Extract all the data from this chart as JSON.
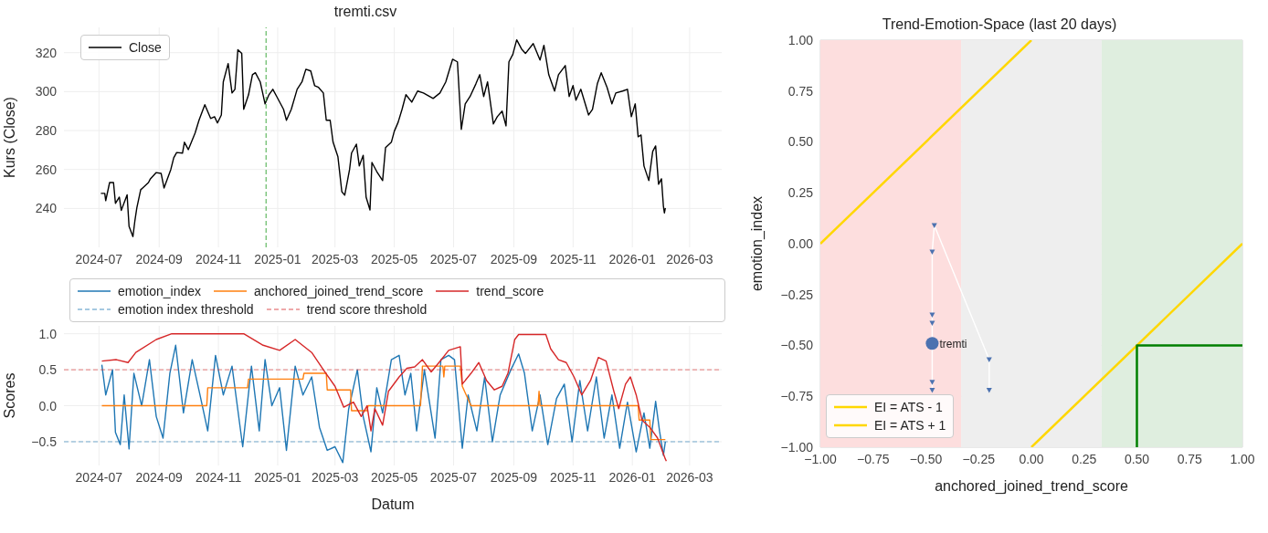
{
  "chart_data": [
    {
      "type": "line",
      "title": "tremti.csv",
      "ylabel": "Kurs (Close)",
      "xlim": [
        "2024-05-26",
        "2026-04-03"
      ],
      "ylim": [
        220,
        333
      ],
      "xticks": [
        "2024-07",
        "2024-09",
        "2024-11",
        "2025-01",
        "2025-03",
        "2025-05",
        "2025-07",
        "2025-09",
        "2025-11",
        "2026-01",
        "2026-03"
      ],
      "yticks": [
        240,
        260,
        280,
        300,
        320
      ],
      "grid": true,
      "legend": "top left",
      "line_style": "solid",
      "ref_lines": [
        {
          "axis": "x",
          "value": "2024-12-20",
          "color": "#2ca02c",
          "line_style": "dashed"
        }
      ],
      "series": [
        {
          "name": "Close",
          "color": "#000000",
          "x": [
            "2024-07-03",
            "2024-07-07",
            "2024-07-08",
            "2024-07-12",
            "2024-07-16",
            "2024-07-18",
            "2024-07-22",
            "2024-07-24",
            "2024-07-30",
            "2024-08-01",
            "2024-08-05",
            "2024-08-07",
            "2024-08-09",
            "2024-08-13",
            "2024-08-15",
            "2024-08-21",
            "2024-08-23",
            "2024-08-29",
            "2024-09-03",
            "2024-09-06",
            "2024-09-13",
            "2024-09-16",
            "2024-09-19",
            "2024-09-25",
            "2024-09-27",
            "2024-10-01",
            "2024-10-08",
            "2024-10-12",
            "2024-10-18",
            "2024-10-24",
            "2024-10-28",
            "2024-10-31",
            "2024-11-04",
            "2024-11-06",
            "2024-11-11",
            "2024-11-15",
            "2024-11-18",
            "2024-11-21",
            "2024-11-25",
            "2024-11-27",
            "2024-12-02",
            "2024-12-06",
            "2024-12-09",
            "2024-12-14",
            "2024-12-19",
            "2024-12-23",
            "2024-12-27",
            "2024-12-31",
            "2025-01-07",
            "2025-01-10",
            "2025-01-15",
            "2025-01-21",
            "2025-01-26",
            "2025-01-30",
            "2025-02-04",
            "2025-02-08",
            "2025-02-12",
            "2025-02-17",
            "2025-02-20",
            "2025-02-24",
            "2025-02-27",
            "2025-03-04",
            "2025-03-08",
            "2025-03-11",
            "2025-03-16",
            "2025-03-18",
            "2025-03-23",
            "2025-03-26",
            "2025-03-30",
            "2025-04-02",
            "2025-04-06",
            "2025-04-08",
            "2025-04-13",
            "2025-04-19",
            "2025-04-22",
            "2025-04-28",
            "2025-05-01",
            "2025-05-05",
            "2025-05-09",
            "2025-05-13",
            "2025-05-19",
            "2025-05-25",
            "2025-05-31",
            "2025-06-10",
            "2025-06-17",
            "2025-06-23",
            "2025-06-30",
            "2025-07-05",
            "2025-07-09",
            "2025-07-13",
            "2025-07-18",
            "2025-07-24",
            "2025-07-28",
            "2025-08-01",
            "2025-08-05",
            "2025-08-11",
            "2025-08-15",
            "2025-08-20",
            "2025-08-24",
            "2025-08-27",
            "2025-08-31",
            "2025-09-04",
            "2025-09-09",
            "2025-09-13",
            "2025-09-21",
            "2025-09-28",
            "2025-10-02",
            "2025-10-07",
            "2025-10-13",
            "2025-10-17",
            "2025-10-24",
            "2025-10-28",
            "2025-11-01",
            "2025-11-04",
            "2025-11-09",
            "2025-11-17",
            "2025-11-21",
            "2025-11-26",
            "2025-11-30",
            "2025-12-06",
            "2025-12-11",
            "2025-12-15",
            "2025-12-22",
            "2025-12-27",
            "2025-12-31",
            "2026-01-04",
            "2026-01-07",
            "2026-01-10",
            "2026-01-13",
            "2026-01-18",
            "2026-01-22",
            "2026-01-25",
            "2026-01-28",
            "2026-01-31",
            "2026-02-02",
            "2026-02-03",
            "2026-02-04"
          ],
          "values": [
            247.7,
            247.7,
            244,
            253.3,
            253.3,
            242.6,
            245.8,
            239,
            247,
            230.8,
            225.5,
            233.6,
            240.2,
            249.6,
            250.5,
            253.3,
            255.2,
            258.4,
            258,
            250.5,
            260,
            266,
            268.7,
            268.4,
            274,
            270.2,
            278.7,
            285.3,
            293.3,
            286.2,
            287.1,
            283.9,
            288,
            305,
            314.4,
            299.3,
            301.2,
            321.5,
            319.6,
            290.9,
            298.4,
            308.7,
            309.7,
            305,
            293.7,
            298.4,
            301.2,
            297.5,
            290.9,
            285.3,
            290.9,
            301.2,
            305,
            311.5,
            310.6,
            303.1,
            302.2,
            299.3,
            285.3,
            285.3,
            274,
            266.5,
            248.6,
            246.8,
            260,
            268.4,
            273,
            261.8,
            267.3,
            245.8,
            239.2,
            263.6,
            258.9,
            254.3,
            271.2,
            274,
            279.6,
            284.3,
            290.9,
            298.4,
            294.6,
            300.3,
            299.3,
            296.5,
            299.3,
            305,
            316.6,
            315.3,
            280.6,
            293.7,
            297.5,
            304,
            308.7,
            297.5,
            305,
            283.4,
            287.1,
            290,
            282.4,
            315.3,
            319.1,
            326.6,
            321.9,
            319.6,
            324.7,
            316.2,
            323.8,
            308.7,
            300.3,
            308.7,
            313.4,
            297.5,
            303.1,
            295.6,
            301.2,
            288,
            290.9,
            304,
            309.7,
            302.2,
            293.7,
            299.3,
            300.3,
            301.2,
            287.1,
            293.7,
            276.8,
            277.7,
            261.8,
            254.3,
            269.3,
            272.1,
            252.4,
            255.2,
            241.1,
            237.7,
            240.2
          ]
        }
      ]
    },
    {
      "type": "line",
      "xlabel": "Datum",
      "ylabel": "Scores",
      "xlim": [
        "2024-05-26",
        "2026-04-03"
      ],
      "ylim": [
        -0.83,
        1.11
      ],
      "xticks": [
        "2024-07",
        "2024-09",
        "2024-11",
        "2025-01",
        "2025-03",
        "2025-05",
        "2025-07",
        "2025-09",
        "2025-11",
        "2026-01",
        "2026-03"
      ],
      "yticks": [
        {
          "value": -0.5,
          "label": "−0.5"
        },
        {
          "value": 0,
          "label": "0.0"
        },
        {
          "value": 0.5,
          "label": "0.5"
        },
        {
          "value": 1,
          "label": "1.0"
        }
      ],
      "grid": true,
      "legend": "top left",
      "line_style": "solid",
      "ref_lines": [
        {
          "axis": "y",
          "value": -0.5,
          "label": "emotion index threshold",
          "color": "#1f77b4",
          "line_style": "dashed"
        },
        {
          "axis": "y",
          "value": 0.5,
          "label": "trend score threshold",
          "color": "#d62728",
          "line_style": "dashed"
        }
      ],
      "series": [
        {
          "name": "emotion_index",
          "color": "#1f77b4",
          "x": [
            "2024-07-04",
            "2024-07-08",
            "2024-07-15",
            "2024-07-18",
            "2024-07-23",
            "2024-07-27",
            "2024-08-01",
            "2024-08-06",
            "2024-08-14",
            "2024-08-22",
            "2024-08-29",
            "2024-09-05",
            "2024-09-12",
            "2024-09-18",
            "2024-09-26",
            "2024-10-05",
            "2024-10-13",
            "2024-10-21",
            "2024-10-29",
            "2024-11-06",
            "2024-11-15",
            "2024-11-26",
            "2024-12-05",
            "2024-12-13",
            "2024-12-19",
            "2024-12-26",
            "2025-01-03",
            "2025-01-10",
            "2025-01-19",
            "2025-01-27",
            "2025-02-05",
            "2025-02-13",
            "2025-02-21",
            "2025-03-01",
            "2025-03-09",
            "2025-03-15",
            "2025-03-24",
            "2025-03-30",
            "2025-04-07",
            "2025-04-13",
            "2025-04-19",
            "2025-04-28",
            "2025-05-06",
            "2025-05-12",
            "2025-05-18",
            "2025-05-24",
            "2025-06-01",
            "2025-06-12",
            "2025-06-18",
            "2025-06-26",
            "2025-07-02",
            "2025-07-10",
            "2025-07-16",
            "2025-07-25",
            "2025-08-02",
            "2025-08-10",
            "2025-08-18",
            "2025-08-29",
            "2025-09-06",
            "2025-09-12",
            "2025-09-20",
            "2025-09-28",
            "2025-10-06",
            "2025-10-15",
            "2025-10-23",
            "2025-10-31",
            "2025-11-08",
            "2025-11-16",
            "2025-11-25",
            "2025-12-03",
            "2025-12-11",
            "2025-12-19",
            "2025-12-27",
            "2026-01-05",
            "2026-01-13",
            "2026-01-19",
            "2026-01-25",
            "2026-01-29",
            "2026-02-02",
            "2026-02-04"
          ],
          "values": [
            0.57,
            0.15,
            0.5,
            -0.37,
            -0.54,
            0.15,
            -0.6,
            0.45,
            0,
            0.64,
            -0.15,
            -0.45,
            0.45,
            0.84,
            -0.1,
            0.64,
            0.15,
            -0.35,
            0.7,
            0.15,
            0.55,
            -0.57,
            0.55,
            -0.35,
            0.64,
            0,
            0.25,
            -0.62,
            0.55,
            0.15,
            0.4,
            -0.3,
            -0.62,
            -0.57,
            -0.79,
            -0.05,
            0.5,
            -0.15,
            -0.64,
            0.25,
            -0.1,
            0.64,
            0.7,
            0.15,
            0.45,
            -0.35,
            0.5,
            -0.45,
            0.64,
            0.7,
            0.64,
            -0.59,
            0.15,
            -0.35,
            0.4,
            -0.5,
            0.15,
            0.5,
            0.72,
            0.45,
            -0.35,
            0.15,
            -0.54,
            0.1,
            0.3,
            -0.5,
            0.35,
            -0.35,
            0.4,
            -0.45,
            0.15,
            -0.59,
            0.05,
            -0.64,
            -0.1,
            -0.59,
            0.06,
            -0.35,
            -0.69,
            -0.5
          ]
        },
        {
          "name": "anchored_joined_trend_score",
          "color": "#ff7f0e",
          "x": [
            "2024-07-04",
            "2024-10-20",
            "2024-10-21",
            "2024-12-01",
            "2024-12-02",
            "2025-01-27",
            "2025-01-28",
            "2025-02-20",
            "2025-02-21",
            "2025-03-17",
            "2025-03-18",
            "2025-04-03",
            "2025-04-04",
            "2025-05-28",
            "2025-05-30",
            "2025-06-20",
            "2025-06-21",
            "2025-06-22",
            "2025-07-08",
            "2025-07-10",
            "2025-07-19",
            "2025-09-26",
            "2025-09-27",
            "2025-09-28",
            "2026-01-07",
            "2026-01-08",
            "2026-01-19",
            "2026-01-20",
            "2026-02-04"
          ],
          "values": [
            0,
            0,
            0.25,
            0.25,
            0.37,
            0.37,
            0.45,
            0.45,
            0.22,
            0.22,
            -0.07,
            -0.07,
            0,
            0,
            0.55,
            0.55,
            0.4,
            0.55,
            0.55,
            0.27,
            0,
            0,
            0.2,
            0,
            0,
            -0.2,
            -0.2,
            -0.47,
            -0.47
          ]
        },
        {
          "name": "trend_score",
          "color": "#d62728",
          "x": [
            "2024-07-04",
            "2024-07-19",
            "2024-07-31",
            "2024-08-08",
            "2024-08-29",
            "2024-09-14",
            "2024-10-05",
            "2024-11-27",
            "2024-12-17",
            "2025-01-03",
            "2025-01-19",
            "2025-02-05",
            "2025-02-17",
            "2025-03-01",
            "2025-03-10",
            "2025-03-20",
            "2025-03-28",
            "2025-04-03",
            "2025-04-07",
            "2025-04-11",
            "2025-04-19",
            "2025-04-25",
            "2025-05-06",
            "2025-05-14",
            "2025-05-22",
            "2025-05-30",
            "2025-06-08",
            "2025-06-16",
            "2025-06-26",
            "2025-07-08",
            "2025-07-10",
            "2025-07-19",
            "2025-07-27",
            "2025-08-04",
            "2025-08-12",
            "2025-08-20",
            "2025-08-26",
            "2025-09-02",
            "2025-09-06",
            "2025-10-04",
            "2025-10-09",
            "2025-10-17",
            "2025-10-25",
            "2025-11-02",
            "2025-11-10",
            "2025-11-19",
            "2025-11-27",
            "2025-12-05",
            "2025-12-13",
            "2025-12-18",
            "2025-12-25",
            "2025-12-30",
            "2026-01-05",
            "2026-01-11",
            "2026-01-19",
            "2026-01-27",
            "2026-02-04",
            "2026-02-05"
          ],
          "values": [
            0.62,
            0.64,
            0.6,
            0.74,
            0.92,
            1,
            1,
            1,
            0.84,
            0.77,
            0.92,
            0.74,
            0.5,
            0.27,
            -0.02,
            0.05,
            -0.15,
            0,
            -0.35,
            -0.04,
            -0.27,
            0.2,
            0.4,
            0.52,
            0.54,
            0.64,
            0.47,
            0.6,
            0.77,
            0.82,
            0.3,
            0.45,
            0.6,
            0.35,
            0.22,
            0.27,
            0.45,
            0.92,
            0.99,
            0.99,
            0.79,
            0.64,
            0.6,
            0.4,
            0.15,
            0.35,
            0.67,
            0.62,
            0.2,
            -0.04,
            0.3,
            0.4,
            0.15,
            -0.2,
            -0.3,
            -0.45,
            -0.74,
            -0.77
          ]
        }
      ]
    },
    {
      "type": "scatter",
      "title": "Trend-Emotion-Space (last 20 days)",
      "xlabel": "anchored_joined_trend_score",
      "ylabel": "emotion_index",
      "xlim": [
        -1,
        1
      ],
      "ylim": [
        -1,
        1
      ],
      "xticks": [
        {
          "value": -1,
          "label": "−1.00"
        },
        {
          "value": -0.75,
          "label": "−0.75"
        },
        {
          "value": -0.5,
          "label": "−0.50"
        },
        {
          "value": -0.25,
          "label": "−0.25"
        },
        {
          "value": 0,
          "label": "0.00"
        },
        {
          "value": 0.25,
          "label": "0.25"
        },
        {
          "value": 0.5,
          "label": "0.50"
        },
        {
          "value": 0.75,
          "label": "0.75"
        },
        {
          "value": 1,
          "label": "1.00"
        }
      ],
      "yticks": [
        {
          "value": -1,
          "label": "−1.00"
        },
        {
          "value": -0.75,
          "label": "−0.75"
        },
        {
          "value": -0.5,
          "label": "−0.50"
        },
        {
          "value": -0.25,
          "label": "−0.25"
        },
        {
          "value": 0,
          "label": "0.00"
        },
        {
          "value": 0.25,
          "label": "0.25"
        },
        {
          "value": 0.5,
          "label": "0.50"
        },
        {
          "value": 0.75,
          "label": "0.75"
        },
        {
          "value": 1,
          "label": "1.00"
        }
      ],
      "grid": true,
      "legend": "bottom left",
      "bands": [
        {
          "axis": "x",
          "from": -1,
          "to": -0.333,
          "color": "#fddede"
        },
        {
          "axis": "x",
          "from": -0.333,
          "to": 0.333,
          "color": "#eeeeee"
        },
        {
          "axis": "x",
          "from": 0.333,
          "to": 1,
          "color": "#dfeedf"
        }
      ],
      "annotations": [
        {
          "text": "tremti",
          "x": -0.47,
          "y": -0.49
        }
      ],
      "series": [
        {
          "name": "EI = ATS - 1",
          "type": "line",
          "color": "#ffd700",
          "marker": "none",
          "x": [
            0,
            1
          ],
          "values": [
            -1,
            0
          ]
        },
        {
          "name": "EI = ATS + 1",
          "type": "line",
          "color": "#ffd700",
          "marker": "none",
          "x": [
            -1,
            0
          ],
          "values": [
            0,
            1
          ]
        },
        {
          "type": "line",
          "color": "#008000",
          "marker": "none",
          "x": [
            0.5,
            0.5,
            1
          ],
          "values": [
            -1,
            -0.5,
            -0.5
          ]
        },
        {
          "type": "line",
          "color": "#ffffff",
          "marker": "none",
          "x": [
            -0.47,
            -0.47,
            -0.47,
            -0.47,
            -0.47,
            -0.47,
            -0.46,
            -0.2,
            -0.2
          ],
          "values": [
            -0.72,
            -0.68,
            -0.52,
            -0.39,
            -0.35,
            -0.04,
            0.09,
            -0.57,
            -0.72
          ]
        },
        {
          "color": "#4c72b0",
          "marker": "triangle",
          "x": [
            -0.47,
            -0.47,
            -0.47,
            -0.47,
            -0.47,
            -0.46,
            -0.2,
            -0.2
          ],
          "values": [
            -0.72,
            -0.68,
            -0.39,
            -0.35,
            -0.04,
            0.09,
            -0.57,
            -0.72
          ]
        },
        {
          "color": "#4c72b0",
          "marker": "circle",
          "x": [
            -0.47
          ],
          "values": [
            -0.49
          ]
        }
      ]
    }
  ]
}
